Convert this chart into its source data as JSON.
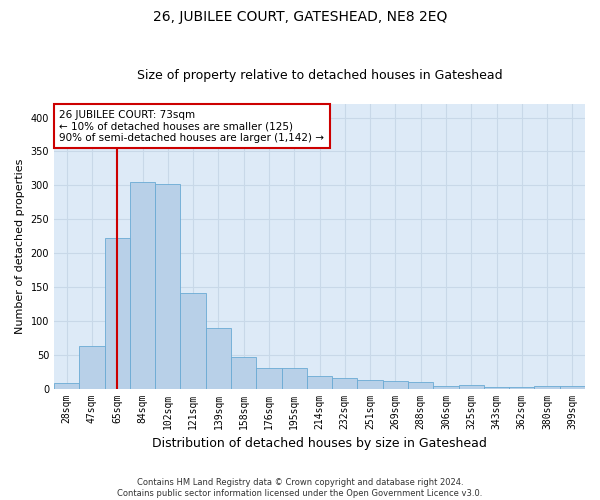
{
  "title": "26, JUBILEE COURT, GATESHEAD, NE8 2EQ",
  "subtitle": "Size of property relative to detached houses in Gateshead",
  "xlabel": "Distribution of detached houses by size in Gateshead",
  "ylabel": "Number of detached properties",
  "categories": [
    "28sqm",
    "47sqm",
    "65sqm",
    "84sqm",
    "102sqm",
    "121sqm",
    "139sqm",
    "158sqm",
    "176sqm",
    "195sqm",
    "214sqm",
    "232sqm",
    "251sqm",
    "269sqm",
    "288sqm",
    "306sqm",
    "325sqm",
    "343sqm",
    "362sqm",
    "380sqm",
    "399sqm"
  ],
  "values": [
    8,
    63,
    222,
    305,
    302,
    141,
    90,
    47,
    30,
    30,
    19,
    15,
    12,
    11,
    10,
    4,
    5,
    3,
    2,
    4,
    4
  ],
  "bar_color": "#b8d0e8",
  "bar_edge_color": "#6aaad4",
  "annotation_text": "26 JUBILEE COURT: 73sqm\n← 10% of detached houses are smaller (125)\n90% of semi-detached houses are larger (1,142) →",
  "annotation_box_color": "#ffffff",
  "annotation_box_edge": "#cc0000",
  "vline_color": "#cc0000",
  "vline_x": 2.0,
  "ylim": [
    0,
    420
  ],
  "yticks": [
    0,
    50,
    100,
    150,
    200,
    250,
    300,
    350,
    400
  ],
  "grid_color": "#c8d8e8",
  "background_color": "#ddeaf7",
  "footer_line1": "Contains HM Land Registry data © Crown copyright and database right 2024.",
  "footer_line2": "Contains public sector information licensed under the Open Government Licence v3.0.",
  "title_fontsize": 10,
  "subtitle_fontsize": 9,
  "xlabel_fontsize": 9,
  "ylabel_fontsize": 8,
  "tick_fontsize": 7,
  "annotation_fontsize": 7.5,
  "footer_fontsize": 6
}
